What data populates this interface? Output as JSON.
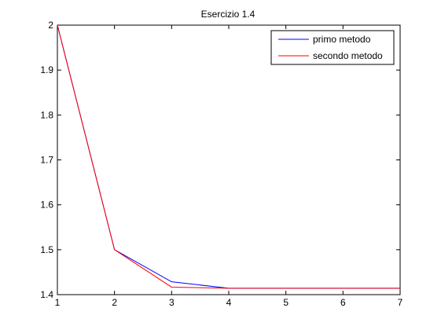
{
  "chart_data": {
    "type": "line",
    "title": "Esercizio 1.4",
    "xlabel": "",
    "ylabel": "",
    "xlim": [
      1,
      7
    ],
    "ylim": [
      1.4,
      2
    ],
    "xticks": [
      1,
      2,
      3,
      4,
      5,
      6,
      7
    ],
    "xtick_labels": [
      "1",
      "2",
      "3",
      "4",
      "5",
      "6",
      "7"
    ],
    "yticks": [
      1.4,
      1.5,
      1.6,
      1.7,
      1.8,
      1.9,
      2.0
    ],
    "ytick_labels": [
      "1.4",
      "1.5",
      "1.6",
      "1.7",
      "1.8",
      "1.9",
      "2"
    ],
    "grid": false,
    "legend_position": "top-right",
    "x": [
      1,
      2,
      3,
      4,
      5,
      6,
      7
    ],
    "series": [
      {
        "name": "primo metodo",
        "color": "#0000ff",
        "values": [
          2.0,
          1.5,
          1.4286,
          1.4142,
          1.4142,
          1.4142,
          1.4142
        ]
      },
      {
        "name": "secondo metodo",
        "color": "#ff0000",
        "values": [
          2.0,
          1.5,
          1.4167,
          1.4142,
          1.4142,
          1.4142,
          1.4142
        ]
      }
    ]
  }
}
